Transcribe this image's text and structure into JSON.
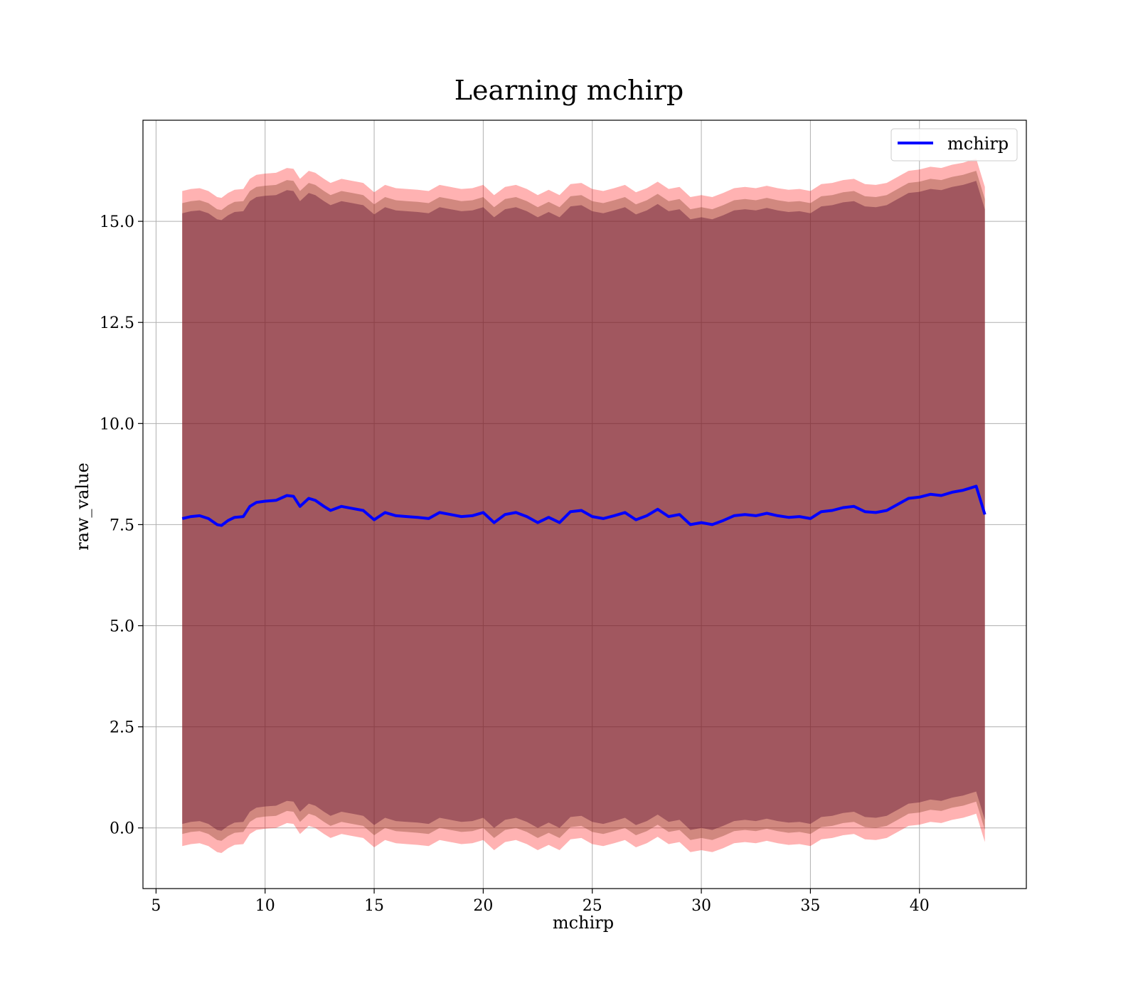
{
  "chart_data": {
    "type": "line",
    "title": "Learning mchirp",
    "xlabel": "mchirp",
    "ylabel": "raw_value",
    "xlim": [
      4.4,
      44.9
    ],
    "ylim": [
      -1.5,
      17.5
    ],
    "xticks": [
      5,
      10,
      15,
      20,
      25,
      30,
      35,
      40
    ],
    "xtick_labels": [
      "5",
      "10",
      "15",
      "20",
      "25",
      "30",
      "35",
      "40"
    ],
    "yticks": [
      0.0,
      2.5,
      5.0,
      7.5,
      10.0,
      12.5,
      15.0
    ],
    "ytick_labels": [
      "0.0",
      "2.5",
      "5.0",
      "7.5",
      "10.0",
      "12.5",
      "15.0"
    ],
    "grid": true,
    "legend": {
      "position": "top-right",
      "entries": [
        "mchirp"
      ]
    },
    "series": [
      {
        "name": "mchirp",
        "color": "#0000ff",
        "x": [
          6.2,
          6.6,
          7.0,
          7.4,
          7.8,
          8.0,
          8.3,
          8.6,
          9.0,
          9.3,
          9.6,
          10.0,
          10.5,
          11.0,
          11.3,
          11.6,
          12.0,
          12.3,
          12.7,
          13.0,
          13.5,
          14.0,
          14.5,
          15.0,
          15.5,
          16.0,
          16.5,
          17.0,
          17.5,
          18.0,
          18.5,
          19.0,
          19.5,
          20.0,
          20.5,
          21.0,
          21.5,
          22.0,
          22.5,
          23.0,
          23.5,
          24.0,
          24.5,
          25.0,
          25.5,
          26.0,
          26.5,
          27.0,
          27.5,
          28.0,
          28.5,
          29.0,
          29.5,
          30.0,
          30.5,
          31.0,
          31.5,
          32.0,
          32.5,
          33.0,
          33.5,
          34.0,
          34.5,
          35.0,
          35.5,
          36.0,
          36.5,
          37.0,
          37.5,
          38.0,
          38.5,
          39.0,
          39.5,
          40.0,
          40.5,
          41.0,
          41.5,
          42.0,
          42.3,
          42.6,
          43.0
        ],
        "y": [
          7.65,
          7.7,
          7.72,
          7.65,
          7.5,
          7.48,
          7.6,
          7.68,
          7.7,
          7.95,
          8.05,
          8.08,
          8.1,
          8.22,
          8.2,
          7.95,
          8.15,
          8.1,
          7.95,
          7.85,
          7.95,
          7.9,
          7.85,
          7.62,
          7.8,
          7.72,
          7.7,
          7.68,
          7.65,
          7.8,
          7.75,
          7.7,
          7.72,
          7.8,
          7.55,
          7.75,
          7.8,
          7.7,
          7.55,
          7.68,
          7.55,
          7.82,
          7.85,
          7.7,
          7.65,
          7.72,
          7.8,
          7.62,
          7.72,
          7.88,
          7.7,
          7.75,
          7.5,
          7.55,
          7.5,
          7.6,
          7.72,
          7.75,
          7.72,
          7.78,
          7.72,
          7.68,
          7.7,
          7.65,
          7.82,
          7.85,
          7.92,
          7.95,
          7.82,
          7.8,
          7.85,
          8.0,
          8.15,
          8.18,
          8.25,
          8.22,
          8.3,
          8.35,
          8.4,
          8.45,
          7.75
        ]
      }
    ],
    "bands": [
      {
        "color": "#ff0000",
        "opacity": 0.3,
        "lower_offset": -8.1,
        "upper_offset": 8.1
      },
      {
        "color": "#7b3a20",
        "opacity": 0.35,
        "lower_offset": -7.8,
        "upper_offset": 7.8
      },
      {
        "color": "#5a1030",
        "opacity": 0.4,
        "lower_offset": -7.55,
        "upper_offset": 7.55
      }
    ]
  }
}
